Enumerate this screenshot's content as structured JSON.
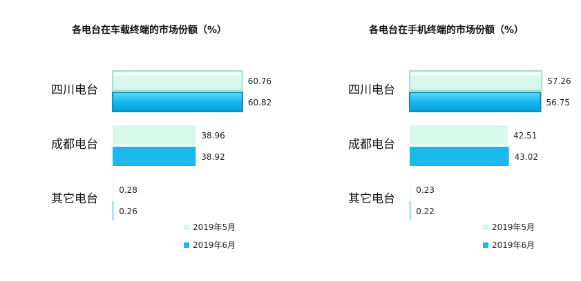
{
  "chart_data": [
    {
      "type": "bar",
      "orientation": "horizontal",
      "title": "各电台在车载终端的市场份额（%）",
      "categories": [
        "四川电台",
        "成都电台",
        "其它电台"
      ],
      "series": [
        {
          "name": "2019年5月",
          "values": [
            60.76,
            38.96,
            0.28
          ],
          "labels": [
            "60.76",
            "38.96",
            "0.28"
          ],
          "color": "#d9f8ec"
        },
        {
          "name": "2019年6月",
          "values": [
            60.82,
            38.92,
            0.26
          ],
          "labels": [
            "60.82",
            "38.92",
            "0.26"
          ],
          "color": "#19b9ec"
        }
      ],
      "legend_position": "bottom-right",
      "grid": false
    },
    {
      "type": "bar",
      "orientation": "horizontal",
      "title": "各电台在手机终端的市场份额（%）",
      "categories": [
        "四川电台",
        "成都电台",
        "其它电台"
      ],
      "series": [
        {
          "name": "2019年5月",
          "values": [
            57.26,
            42.51,
            0.23
          ],
          "labels": [
            "57.26",
            "42.51",
            "0.23"
          ],
          "color": "#d9f8ec"
        },
        {
          "name": "2019年6月",
          "values": [
            56.75,
            43.02,
            0.22
          ],
          "labels": [
            "56.75",
            "43.02",
            "0.22"
          ],
          "color": "#19b9ec"
        }
      ],
      "legend_position": "bottom-right",
      "grid": false
    }
  ]
}
